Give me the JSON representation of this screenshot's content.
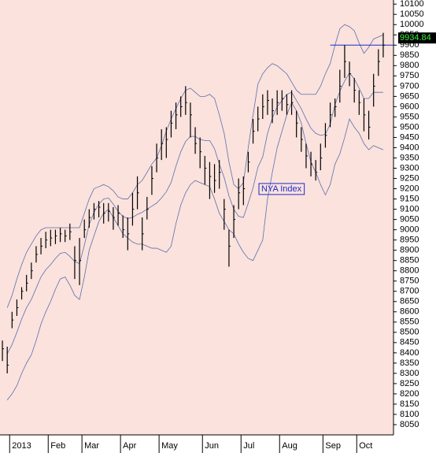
{
  "chart_data": {
    "type": "ohlc",
    "label": "NYA Index",
    "categories": [
      null,
      null,
      "2013",
      null,
      null,
      null,
      null,
      null,
      null,
      null,
      "Feb",
      null,
      null,
      null,
      null,
      null,
      null,
      "Mar",
      null,
      null,
      null,
      null,
      null,
      null,
      null,
      "Apr",
      null,
      null,
      null,
      null,
      null,
      null,
      null,
      "May",
      null,
      null,
      null,
      null,
      null,
      null,
      null,
      null,
      "Jun",
      null,
      null,
      null,
      null,
      null,
      null,
      null,
      "Jul",
      null,
      null,
      null,
      null,
      null,
      null,
      null,
      "Aug",
      null,
      null,
      null,
      null,
      null,
      null,
      null,
      null,
      "Sep",
      null,
      null,
      null,
      null,
      null,
      null,
      "Oct",
      null,
      null,
      null,
      null,
      null
    ],
    "high": [
      8460,
      8430,
      8600,
      8660,
      8720,
      8780,
      8840,
      8920,
      8960,
      8990,
      9000,
      9000,
      9010,
      9000,
      9030,
      8920,
      8960,
      9050,
      9100,
      9130,
      9140,
      9130,
      9130,
      9110,
      9120,
      9070,
      9060,
      9180,
      9260,
      9060,
      9160,
      9310,
      9420,
      9490,
      9500,
      9580,
      9620,
      9650,
      9700,
      9620,
      9500,
      9450,
      9360,
      9330,
      9320,
      9340,
      9150,
      9000,
      9120,
      9250,
      9260,
      9380,
      9540,
      9600,
      9660,
      9680,
      9640,
      9680,
      9680,
      9660,
      9680,
      9580,
      9500,
      9420,
      9380,
      9340,
      9420,
      9520,
      9620,
      9640,
      9780,
      9900,
      9820,
      9740,
      9680,
      9640,
      9580,
      9760,
      9880,
      9960
    ],
    "low": [
      8360,
      8300,
      8520,
      8580,
      8660,
      8700,
      8760,
      8840,
      8880,
      8910,
      8920,
      8930,
      8940,
      8940,
      8950,
      8760,
      8730,
      8960,
      9010,
      9050,
      9060,
      9030,
      9040,
      9000,
      9020,
      8960,
      8900,
      9020,
      9100,
      8900,
      9050,
      9170,
      9280,
      9340,
      9350,
      9450,
      9490,
      9550,
      9560,
      9450,
      9370,
      9300,
      9220,
      9150,
      9180,
      9200,
      9000,
      8820,
      8960,
      9100,
      9120,
      9280,
      9420,
      9480,
      9540,
      9560,
      9520,
      9560,
      9580,
      9560,
      9560,
      9450,
      9380,
      9300,
      9260,
      9240,
      9290,
      9400,
      9500,
      9550,
      9620,
      9740,
      9700,
      9620,
      9560,
      9480,
      9440,
      9600,
      9750,
      9840
    ],
    "close": [
      8420,
      8340,
      8560,
      8620,
      8700,
      8740,
      8800,
      8880,
      8920,
      8950,
      8960,
      8970,
      8980,
      8970,
      8990,
      8850,
      8850,
      9000,
      9060,
      9100,
      9110,
      9080,
      9090,
      9060,
      9080,
      9000,
      8980,
      9100,
      9180,
      8980,
      9100,
      9250,
      9350,
      9420,
      9440,
      9520,
      9560,
      9600,
      9620,
      9560,
      9420,
      9380,
      9300,
      9260,
      9240,
      9280,
      9100,
      8920,
      9050,
      9180,
      9200,
      9330,
      9480,
      9540,
      9600,
      9630,
      9580,
      9620,
      9640,
      9610,
      9620,
      9520,
      9440,
      9360,
      9320,
      9280,
      9350,
      9460,
      9560,
      9600,
      9700,
      9820,
      9760,
      9680,
      9620,
      9560,
      9500,
      9700,
      9820,
      9900
    ],
    "bands": [
      {
        "color": "#5a6fb0",
        "values": [
          null,
          8620,
          8680,
          8760,
          8830,
          8890,
          8930,
          8970,
          9000,
          9010,
          9010,
          9010,
          9010,
          9010,
          9010,
          9010,
          9010,
          9080,
          9150,
          9200,
          9210,
          9220,
          9210,
          9190,
          9160,
          9150,
          9150,
          9180,
          9220,
          9240,
          9280,
          9320,
          9350,
          9410,
          9480,
          9540,
          9590,
          9640,
          9680,
          9690,
          9670,
          9650,
          9650,
          9660,
          9640,
          9560,
          9470,
          9330,
          9220,
          9200,
          9230,
          9400,
          9560,
          9710,
          9760,
          9790,
          9810,
          9800,
          9780,
          9760,
          9720,
          9680,
          9660,
          9660,
          9660,
          9660,
          9700,
          9760,
          9810,
          9900,
          9980,
          10000,
          9990,
          9970,
          9910,
          9860,
          9890,
          9930,
          9940,
          9950
        ]
      },
      {
        "color": "#5a6fb0",
        "values": [
          null,
          8395,
          8440,
          8500,
          8565,
          8620,
          8660,
          8715,
          8770,
          8805,
          8830,
          8860,
          8885,
          8890,
          8870,
          8845,
          8835,
          8925,
          9025,
          9085,
          9125,
          9150,
          9155,
          9125,
          9090,
          9065,
          9055,
          9060,
          9075,
          9085,
          9100,
          9115,
          9130,
          9155,
          9185,
          9230,
          9310,
          9380,
          9430,
          9455,
          9455,
          9440,
          9435,
          9435,
          9395,
          9320,
          9255,
          9165,
          9100,
          9065,
          9060,
          9130,
          9205,
          9305,
          9355,
          9470,
          9545,
          9600,
          9630,
          9660,
          9670,
          9630,
          9590,
          9540,
          9495,
          9470,
          9460,
          9465,
          9515,
          9610,
          9675,
          9725,
          9765,
          9735,
          9690,
          9640,
          9640,
          9670,
          9670,
          9670
        ]
      },
      {
        "color": "#5a6fb0",
        "values": [
          null,
          8170,
          8200,
          8240,
          8300,
          8350,
          8390,
          8460,
          8540,
          8600,
          8650,
          8710,
          8760,
          8770,
          8730,
          8680,
          8660,
          8770,
          8900,
          8970,
          9040,
          9080,
          9100,
          9060,
          9020,
          8980,
          8960,
          8940,
          8930,
          8930,
          8920,
          8910,
          8910,
          8900,
          8890,
          8920,
          9030,
          9120,
          9180,
          9220,
          9240,
          9230,
          9220,
          9210,
          9150,
          9080,
          9040,
          9000,
          8980,
          8930,
          8890,
          8860,
          8850,
          8900,
          8950,
          9150,
          9280,
          9400,
          9480,
          9560,
          9620,
          9580,
          9520,
          9420,
          9330,
          9280,
          9220,
          9170,
          9220,
          9320,
          9370,
          9450,
          9540,
          9500,
          9470,
          9420,
          9390,
          9410,
          9400,
          9390
        ]
      }
    ],
    "reference_line": 9900,
    "reference_color": "#1a2bd0",
    "last_price": 9934.84,
    "bar_color": "#000000",
    "ylim": [
      8000,
      10120
    ],
    "yticks": [
      8050,
      8100,
      8150,
      8200,
      8250,
      8300,
      8350,
      8400,
      8450,
      8500,
      8550,
      8600,
      8650,
      8700,
      8750,
      8800,
      8850,
      8900,
      8950,
      9000,
      9050,
      9100,
      9150,
      9200,
      9250,
      9300,
      9350,
      9400,
      9450,
      9500,
      9550,
      9600,
      9650,
      9700,
      9750,
      9800,
      9850,
      9900,
      9950,
      10000,
      10050,
      10100
    ]
  }
}
